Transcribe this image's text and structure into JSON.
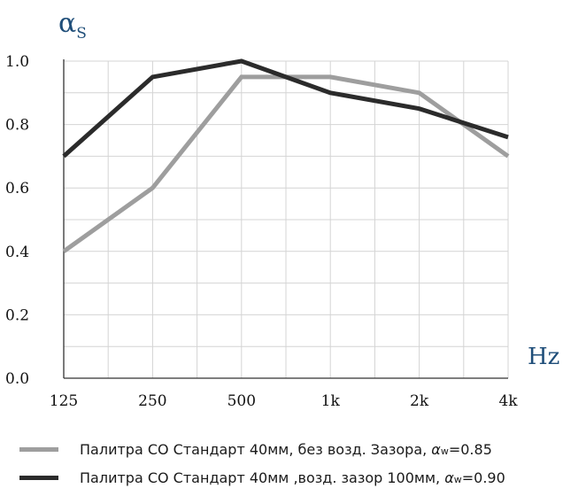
{
  "chart_data": {
    "type": "line",
    "y_axis_title": "α",
    "y_axis_title_subscript": "S",
    "x_axis_title": "Hz",
    "categories": [
      "125",
      "250",
      "500",
      "1k",
      "2k",
      "4k"
    ],
    "yticks": [
      "0.0",
      "0.2",
      "0.4",
      "0.6",
      "0.8",
      "1.0"
    ],
    "ylim": [
      0,
      1
    ],
    "grid": true,
    "series": [
      {
        "name": "Палитра CO Стандарт 40мм, без возд. Зазора, αw=0.85",
        "legend_text": "Палитра CO Стандарт 40мм, без возд. Зазора, ",
        "legend_aw": "α",
        "legend_aw_sub": "w",
        "legend_value": "=0.85",
        "color": "#9e9e9e",
        "values": [
          0.4,
          0.6,
          0.95,
          0.95,
          0.9,
          0.7
        ]
      },
      {
        "name": "Палитра CO Стандарт 40мм ,возд. зазор 100мм, αw=0.90",
        "legend_text": "Палитра CO Стандарт 40мм ,возд. зазор 100мм, ",
        "legend_aw": "α",
        "legend_aw_sub": "w",
        "legend_value": "=0.90",
        "color": "#2b2b2b",
        "values": [
          0.7,
          0.95,
          1.0,
          0.9,
          0.85,
          0.76
        ]
      }
    ]
  }
}
